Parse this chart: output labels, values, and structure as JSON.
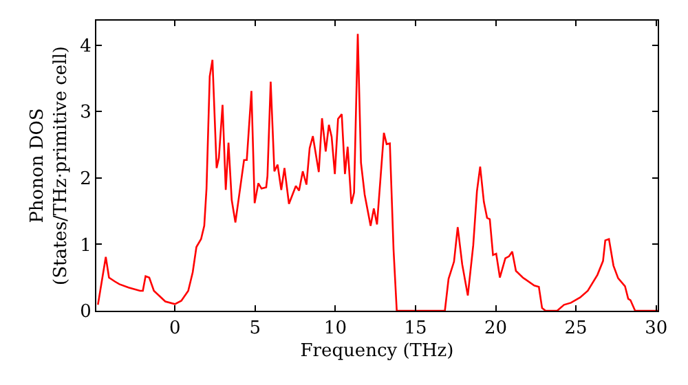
{
  "chart_data": {
    "type": "line",
    "xlabel": "Frequency (THz)",
    "ylabel": "Phonon DOS\n(States/THz·primitive cell)",
    "xlim": [
      -4.9,
      30.1
    ],
    "ylim": [
      0,
      4.37
    ],
    "xticks": [
      0,
      5,
      10,
      15,
      20,
      25,
      30
    ],
    "yticks": [
      0,
      1,
      2,
      3,
      4
    ],
    "marker": "none",
    "line_style": "solid",
    "x": [
      -4.8,
      -4.31,
      -4.11,
      -3.74,
      -3.46,
      -2.89,
      -2.17,
      -2.0,
      -1.83,
      -1.6,
      -1.31,
      -0.6,
      0,
      0.4,
      0.83,
      1.11,
      1.34,
      1.63,
      1.83,
      1.97,
      2.17,
      2.34,
      2.6,
      2.74,
      2.97,
      3.17,
      3.34,
      3.54,
      3.77,
      4.31,
      4.48,
      4.77,
      4.97,
      5.2,
      5.4,
      5.69,
      5.77,
      5.97,
      6.2,
      6.4,
      6.63,
      6.83,
      7.11,
      7.54,
      7.74,
      7.97,
      8.2,
      8.4,
      8.6,
      8.97,
      9.17,
      9.4,
      9.6,
      9.77,
      9.97,
      10.17,
      10.4,
      10.6,
      10.77,
      11.0,
      11.17,
      11.4,
      11.6,
      11.83,
      12.2,
      12.4,
      12.6,
      13.03,
      13.2,
      13.4,
      13.63,
      13.83,
      16.83,
      17.06,
      17.4,
      17.63,
      17.91,
      18.26,
      18.6,
      18.83,
      19.03,
      19.26,
      19.46,
      19.63,
      19.83,
      20.03,
      20.26,
      20.6,
      20.83,
      21.03,
      21.26,
      21.69,
      22.4,
      22.69,
      22.89,
      23.11,
      23.83,
      24.26,
      24.69,
      25.26,
      25.74,
      26.34,
      26.69,
      26.83,
      27.06,
      27.34,
      27.63,
      28.06,
      28.26,
      28.4,
      28.69,
      30.1
    ],
    "series": [
      {
        "color": "#ff0000",
        "values": [
          0.09,
          0.81,
          0.5,
          0.44,
          0.4,
          0.35,
          0.3,
          0.3,
          0.52,
          0.5,
          0.3,
          0.14,
          0.1,
          0.15,
          0.3,
          0.58,
          0.96,
          1.08,
          1.28,
          1.84,
          3.53,
          3.78,
          2.15,
          2.3,
          3.1,
          1.82,
          2.53,
          1.67,
          1.33,
          2.27,
          2.27,
          3.31,
          1.62,
          1.92,
          1.84,
          1.86,
          2.03,
          3.45,
          2.1,
          2.2,
          1.82,
          2.15,
          1.61,
          1.88,
          1.81,
          2.1,
          1.9,
          2.45,
          2.63,
          2.09,
          2.9,
          2.4,
          2.8,
          2.62,
          2.06,
          2.89,
          2.96,
          2.06,
          2.47,
          1.61,
          1.78,
          4.17,
          2.23,
          1.75,
          1.28,
          1.54,
          1.3,
          2.68,
          2.51,
          2.52,
          0.92,
          0,
          0,
          0.48,
          0.74,
          1.26,
          0.7,
          0.23,
          0.99,
          1.8,
          2.17,
          1.64,
          1.4,
          1.38,
          0.84,
          0.86,
          0.5,
          0.79,
          0.82,
          0.89,
          0.6,
          0.5,
          0.38,
          0.36,
          0.04,
          0,
          0,
          0.09,
          0.12,
          0.2,
          0.3,
          0.54,
          0.75,
          1.06,
          1.08,
          0.68,
          0.49,
          0.37,
          0.18,
          0.16,
          0,
          0
        ]
      }
    ]
  }
}
